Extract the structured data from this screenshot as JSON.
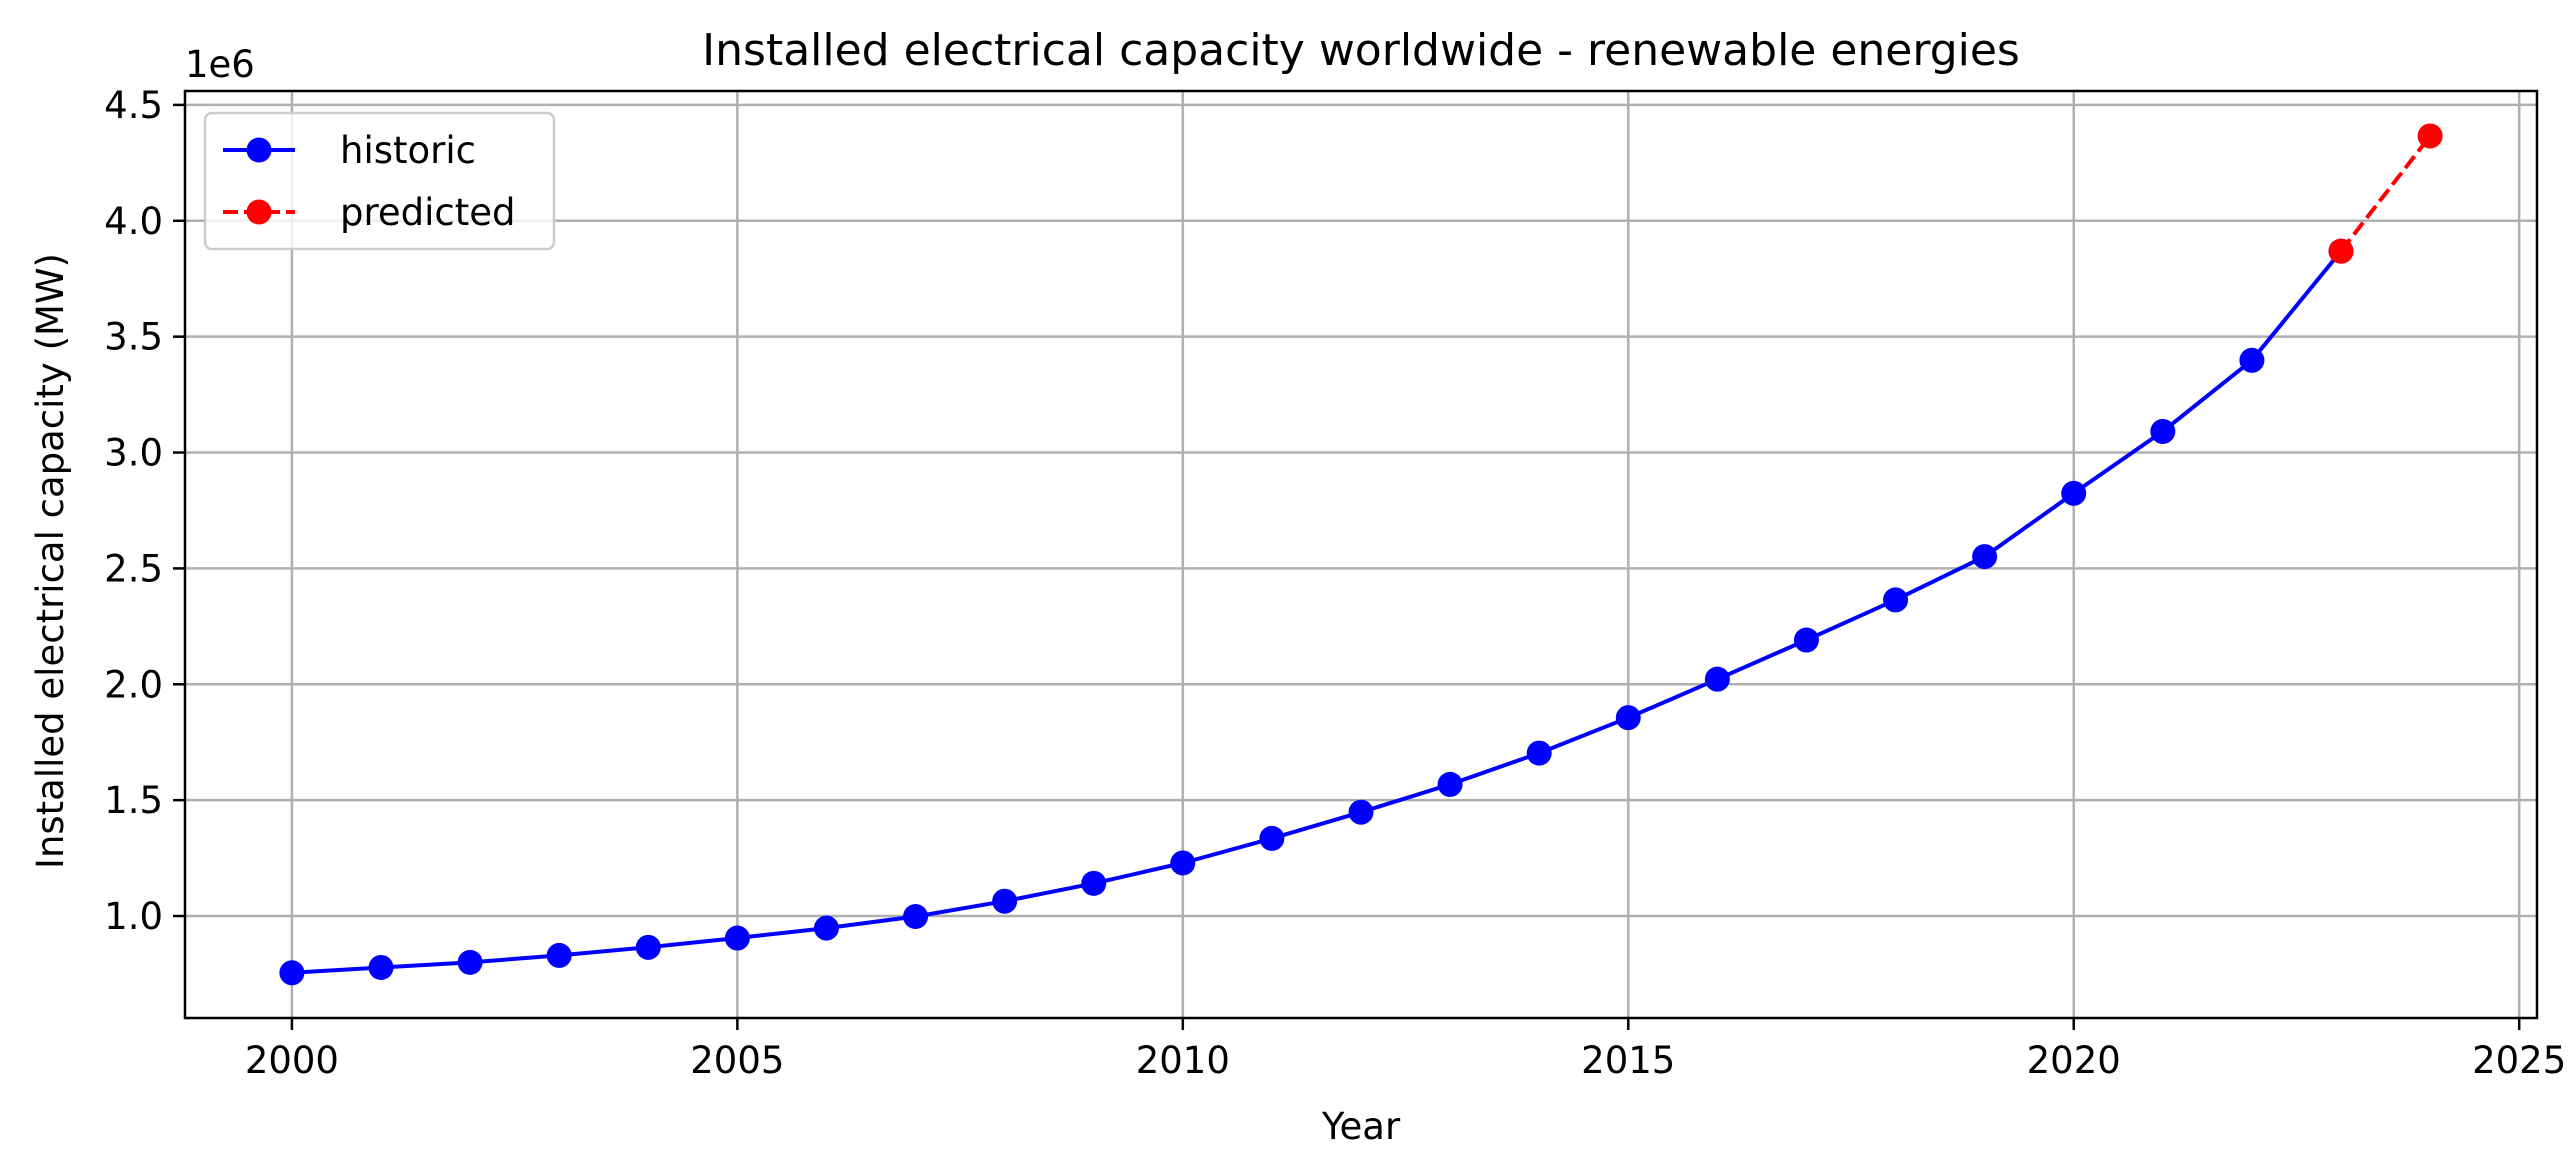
{
  "chart_data": {
    "type": "line",
    "title": "Installed electrical capacity worldwide - renewable energies",
    "xlabel": "Year",
    "ylabel": "Installed electrical capacity (MW)",
    "y_offset_label": "1e6",
    "xlim": [
      1998.8,
      2025.2
    ],
    "ylim": [
      560000,
      4560000
    ],
    "x_ticks": [
      2000,
      2005,
      2010,
      2015,
      2020,
      2025
    ],
    "x_tick_labels": [
      "2000",
      "2005",
      "2010",
      "2015",
      "2020",
      "2025"
    ],
    "y_ticks": [
      1000000,
      1500000,
      2000000,
      2500000,
      3000000,
      3500000,
      4000000,
      4500000
    ],
    "y_tick_labels": [
      "1.0",
      "1.5",
      "2.0",
      "2.5",
      "3.0",
      "3.5",
      "4.0",
      "4.5"
    ],
    "grid": true,
    "legend_position": "top-left",
    "series": [
      {
        "name": "historic",
        "color": "#0000ff",
        "line_style": "solid",
        "marker": "circle",
        "x": [
          2000,
          2001,
          2002,
          2003,
          2004,
          2005,
          2006,
          2007,
          2008,
          2009,
          2010,
          2011,
          2012,
          2013,
          2014,
          2015,
          2016,
          2017,
          2018,
          2019,
          2020,
          2021,
          2022,
          2023
        ],
        "y": [
          755000,
          778000,
          800000,
          830000,
          865000,
          905000,
          948000,
          998000,
          1064000,
          1141000,
          1229000,
          1335000,
          1448000,
          1568000,
          1703000,
          1856000,
          2022000,
          2191000,
          2364000,
          2551000,
          2824000,
          3091000,
          3398000,
          3869000
        ]
      },
      {
        "name": "predicted",
        "color": "#ff0000",
        "line_style": "dashed",
        "marker": "circle",
        "x": [
          2023,
          2024
        ],
        "y": [
          3869000,
          4366000
        ]
      }
    ]
  }
}
